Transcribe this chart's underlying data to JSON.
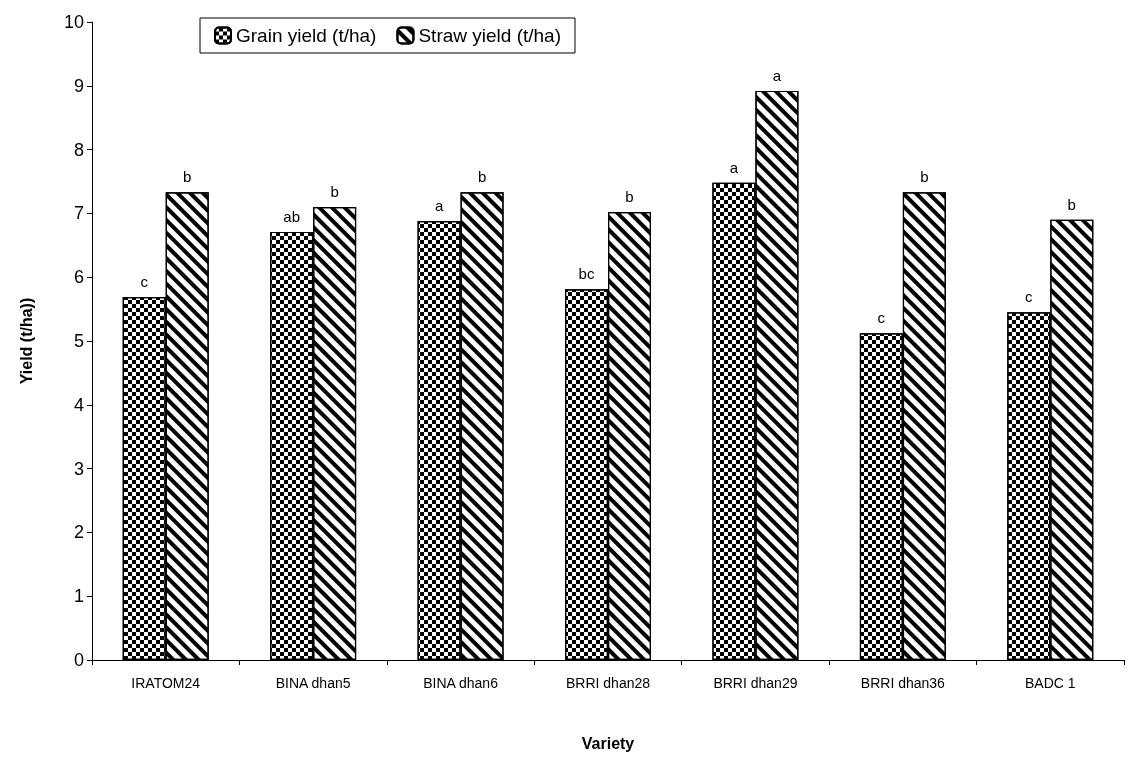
{
  "chart_data": {
    "type": "bar",
    "xlabel": "Variety",
    "ylabel": "Yield (t/ha))",
    "categories": [
      "IRATOM24",
      "BINA dhan5",
      "BINA dhan6",
      "BRRI dhan28",
      "BRRI dhan29",
      "BRRI dhan36",
      "BADC 1"
    ],
    "series": [
      {
        "name": "Grain yield (t/ha)",
        "color": "#000000",
        "values": [
          5.69,
          6.71,
          6.88,
          5.81,
          7.48,
          5.12,
          5.45
        ],
        "value_labels": [
          "c",
          "ab",
          "a",
          "bc",
          "a",
          "c",
          "c"
        ]
      },
      {
        "name": "Straw yield (t/ha)",
        "color": "#000000",
        "values": [
          7.33,
          7.1,
          7.33,
          7.02,
          8.92,
          7.33,
          6.9
        ],
        "value_labels": [
          "b",
          "b",
          "b",
          "b",
          "a",
          "b",
          "b"
        ]
      }
    ],
    "ylim": [
      0,
      10
    ],
    "yticks": [
      0,
      1,
      2,
      3,
      4,
      5,
      6,
      7,
      8,
      9,
      10
    ],
    "grid": false,
    "legend": "top"
  }
}
